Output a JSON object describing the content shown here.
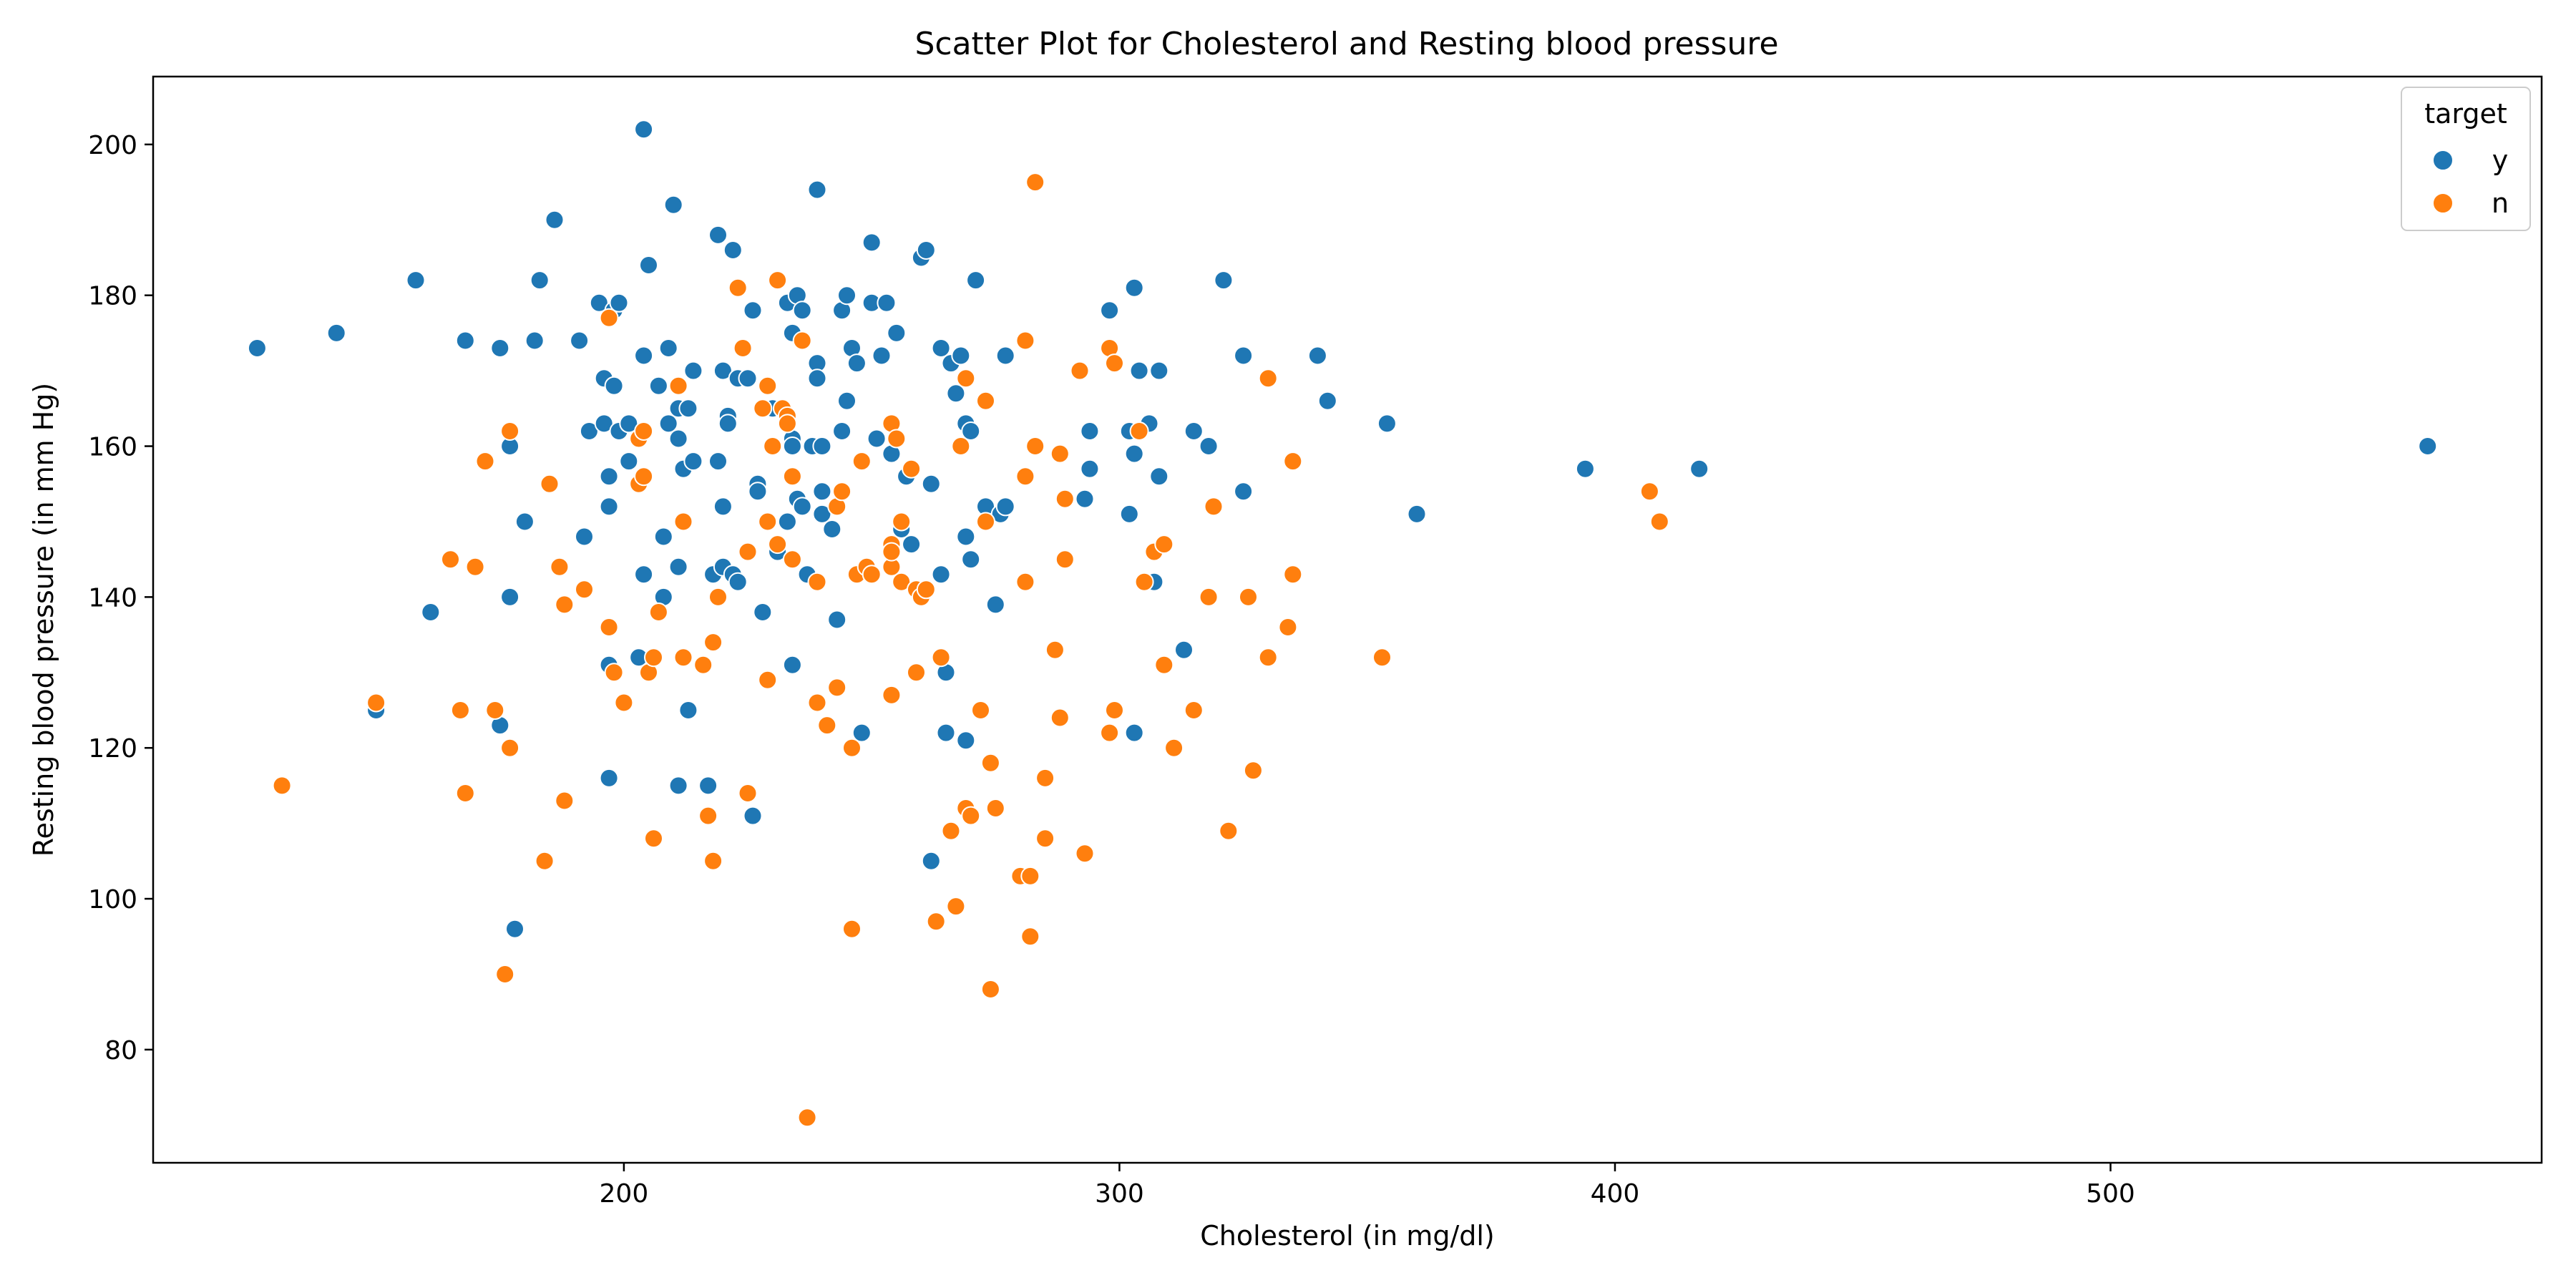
{
  "chart_data": {
    "type": "scatter",
    "title": "Scatter Plot for Cholesterol and Resting blood pressure",
    "xlabel": "Cholesterol (in mg/dl)",
    "ylabel": "Resting blood pressure (in mm Hg)",
    "xlim": [
      105,
      587
    ],
    "ylim": [
      65,
      209
    ],
    "xticks": [
      200,
      300,
      400,
      500
    ],
    "yticks": [
      80,
      100,
      120,
      140,
      160,
      180,
      200
    ],
    "grid": false,
    "legend": {
      "title": "target",
      "position": "top-right",
      "entries": [
        {
          "label": "y",
          "color": "#1f77b4"
        },
        {
          "label": "n",
          "color": "#ff7f0e"
        }
      ]
    },
    "series": [
      {
        "name": "y",
        "color": "#1f77b4",
        "points": [
          [
            126,
            173
          ],
          [
            142,
            175
          ],
          [
            150,
            125
          ],
          [
            158,
            182
          ],
          [
            161,
            138
          ],
          [
            168,
            174
          ],
          [
            175,
            173
          ],
          [
            175,
            123
          ],
          [
            177,
            160
          ],
          [
            177,
            140
          ],
          [
            178,
            96
          ],
          [
            180,
            150
          ],
          [
            182,
            174
          ],
          [
            183,
            182
          ],
          [
            186,
            190
          ],
          [
            191,
            174
          ],
          [
            192,
            148
          ],
          [
            193,
            162
          ],
          [
            195,
            179
          ],
          [
            196,
            163
          ],
          [
            196,
            169
          ],
          [
            197,
            156
          ],
          [
            197,
            152
          ],
          [
            197,
            131
          ],
          [
            197,
            116
          ],
          [
            198,
            168
          ],
          [
            198,
            178
          ],
          [
            199,
            179
          ],
          [
            199,
            162
          ],
          [
            200,
            126
          ],
          [
            201,
            163
          ],
          [
            201,
            158
          ],
          [
            203,
            132
          ],
          [
            204,
            143
          ],
          [
            204,
            172
          ],
          [
            204,
            202
          ],
          [
            205,
            184
          ],
          [
            207,
            168
          ],
          [
            208,
            140
          ],
          [
            208,
            148
          ],
          [
            209,
            163
          ],
          [
            209,
            173
          ],
          [
            210,
            192
          ],
          [
            211,
            165
          ],
          [
            211,
            161
          ],
          [
            211,
            144
          ],
          [
            211,
            115
          ],
          [
            212,
            157
          ],
          [
            213,
            165
          ],
          [
            213,
            125
          ],
          [
            214,
            170
          ],
          [
            214,
            158
          ],
          [
            217,
            115
          ],
          [
            218,
            143
          ],
          [
            219,
            188
          ],
          [
            219,
            158
          ],
          [
            220,
            170
          ],
          [
            220,
            152
          ],
          [
            220,
            144
          ],
          [
            221,
            164
          ],
          [
            221,
            163
          ],
          [
            222,
            143
          ],
          [
            222,
            186
          ],
          [
            223,
            169
          ],
          [
            223,
            142
          ],
          [
            225,
            169
          ],
          [
            226,
            178
          ],
          [
            226,
            111
          ],
          [
            227,
            155
          ],
          [
            227,
            154
          ],
          [
            228,
            138
          ],
          [
            230,
            165
          ],
          [
            231,
            147
          ],
          [
            231,
            146
          ],
          [
            232,
            165
          ],
          [
            233,
            179
          ],
          [
            233,
            150
          ],
          [
            234,
            161
          ],
          [
            234,
            160
          ],
          [
            234,
            175
          ],
          [
            234,
            131
          ],
          [
            235,
            180
          ],
          [
            235,
            153
          ],
          [
            236,
            152
          ],
          [
            236,
            178
          ],
          [
            237,
            143
          ],
          [
            238,
            160
          ],
          [
            239,
            171
          ],
          [
            239,
            169
          ],
          [
            239,
            194
          ],
          [
            240,
            160
          ],
          [
            240,
            151
          ],
          [
            240,
            154
          ],
          [
            242,
            149
          ],
          [
            243,
            137
          ],
          [
            244,
            178
          ],
          [
            244,
            162
          ],
          [
            245,
            180
          ],
          [
            245,
            166
          ],
          [
            246,
            173
          ],
          [
            247,
            171
          ],
          [
            248,
            122
          ],
          [
            250,
            187
          ],
          [
            250,
            179
          ],
          [
            251,
            161
          ],
          [
            252,
            172
          ],
          [
            253,
            179
          ],
          [
            254,
            159
          ],
          [
            255,
            175
          ],
          [
            256,
            149
          ],
          [
            257,
            156
          ],
          [
            258,
            147
          ],
          [
            260,
            185
          ],
          [
            261,
            186
          ],
          [
            262,
            155
          ],
          [
            262,
            105
          ],
          [
            264,
            143
          ],
          [
            264,
            173
          ],
          [
            265,
            130
          ],
          [
            265,
            122
          ],
          [
            266,
            171
          ],
          [
            267,
            167
          ],
          [
            268,
            172
          ],
          [
            269,
            121
          ],
          [
            269,
            148
          ],
          [
            269,
            163
          ],
          [
            270,
            145
          ],
          [
            270,
            162
          ],
          [
            271,
            182
          ],
          [
            273,
            152
          ],
          [
            275,
            139
          ],
          [
            276,
            151
          ],
          [
            277,
            172
          ],
          [
            277,
            152
          ],
          [
            293,
            153
          ],
          [
            294,
            157
          ],
          [
            294,
            162
          ],
          [
            298,
            178
          ],
          [
            302,
            162
          ],
          [
            302,
            151
          ],
          [
            303,
            181
          ],
          [
            303,
            159
          ],
          [
            303,
            122
          ],
          [
            304,
            170
          ],
          [
            306,
            163
          ],
          [
            307,
            142
          ],
          [
            308,
            170
          ],
          [
            308,
            156
          ],
          [
            315,
            162
          ],
          [
            318,
            160
          ],
          [
            321,
            182
          ],
          [
            325,
            172
          ],
          [
            325,
            154
          ],
          [
            340,
            172
          ],
          [
            342,
            166
          ],
          [
            354,
            163
          ],
          [
            360,
            151
          ],
          [
            394,
            157
          ],
          [
            417,
            157
          ],
          [
            564,
            160
          ],
          [
            313,
            133
          ]
        ]
      },
      {
        "name": "n",
        "color": "#ff7f0e",
        "points": [
          [
            131,
            115
          ],
          [
            150,
            126
          ],
          [
            165,
            145
          ],
          [
            167,
            125
          ],
          [
            168,
            114
          ],
          [
            170,
            144
          ],
          [
            172,
            158
          ],
          [
            174,
            125
          ],
          [
            176,
            90
          ],
          [
            177,
            162
          ],
          [
            177,
            120
          ],
          [
            184,
            105
          ],
          [
            185,
            155
          ],
          [
            187,
            144
          ],
          [
            188,
            113
          ],
          [
            188,
            139
          ],
          [
            192,
            141
          ],
          [
            197,
            177
          ],
          [
            197,
            136
          ],
          [
            198,
            130
          ],
          [
            200,
            126
          ],
          [
            203,
            161
          ],
          [
            203,
            155
          ],
          [
            204,
            162
          ],
          [
            204,
            156
          ],
          [
            205,
            130
          ],
          [
            206,
            132
          ],
          [
            206,
            108
          ],
          [
            207,
            138
          ],
          [
            211,
            168
          ],
          [
            212,
            150
          ],
          [
            212,
            132
          ],
          [
            216,
            131
          ],
          [
            217,
            111
          ],
          [
            218,
            134
          ],
          [
            218,
            105
          ],
          [
            219,
            140
          ],
          [
            223,
            181
          ],
          [
            224,
            173
          ],
          [
            225,
            146
          ],
          [
            225,
            114
          ],
          [
            228,
            165
          ],
          [
            229,
            150
          ],
          [
            229,
            168
          ],
          [
            229,
            129
          ],
          [
            230,
            160
          ],
          [
            231,
            147
          ],
          [
            231,
            182
          ],
          [
            232,
            165
          ],
          [
            233,
            164
          ],
          [
            233,
            163
          ],
          [
            234,
            156
          ],
          [
            234,
            145
          ],
          [
            236,
            174
          ],
          [
            239,
            126
          ],
          [
            239,
            142
          ],
          [
            241,
            123
          ],
          [
            243,
            152
          ],
          [
            243,
            128
          ],
          [
            244,
            154
          ],
          [
            246,
            120
          ],
          [
            246,
            96
          ],
          [
            247,
            143
          ],
          [
            248,
            158
          ],
          [
            249,
            144
          ],
          [
            250,
            143
          ],
          [
            254,
            127
          ],
          [
            254,
            144
          ],
          [
            254,
            147
          ],
          [
            254,
            146
          ],
          [
            254,
            163
          ],
          [
            255,
            161
          ],
          [
            256,
            150
          ],
          [
            256,
            142
          ],
          [
            258,
            157
          ],
          [
            259,
            141
          ],
          [
            259,
            130
          ],
          [
            260,
            140
          ],
          [
            261,
            141
          ],
          [
            263,
            97
          ],
          [
            264,
            132
          ],
          [
            266,
            109
          ],
          [
            267,
            99
          ],
          [
            268,
            160
          ],
          [
            269,
            169
          ],
          [
            269,
            112
          ],
          [
            270,
            111
          ],
          [
            272,
            125
          ],
          [
            273,
            150
          ],
          [
            273,
            166
          ],
          [
            274,
            118
          ],
          [
            274,
            88
          ],
          [
            275,
            112
          ],
          [
            280,
            103
          ],
          [
            281,
            156
          ],
          [
            281,
            174
          ],
          [
            281,
            142
          ],
          [
            282,
            95
          ],
          [
            282,
            103
          ],
          [
            283,
            195
          ],
          [
            283,
            160
          ],
          [
            285,
            116
          ],
          [
            285,
            108
          ],
          [
            287,
            133
          ],
          [
            288,
            159
          ],
          [
            288,
            124
          ],
          [
            289,
            145
          ],
          [
            289,
            153
          ],
          [
            292,
            170
          ],
          [
            293,
            106
          ],
          [
            298,
            122
          ],
          [
            298,
            173
          ],
          [
            299,
            125
          ],
          [
            299,
            171
          ],
          [
            304,
            162
          ],
          [
            305,
            142
          ],
          [
            307,
            146
          ],
          [
            309,
            147
          ],
          [
            309,
            131
          ],
          [
            311,
            120
          ],
          [
            315,
            125
          ],
          [
            318,
            140
          ],
          [
            319,
            152
          ],
          [
            322,
            109
          ],
          [
            326,
            140
          ],
          [
            327,
            117
          ],
          [
            330,
            169
          ],
          [
            330,
            132
          ],
          [
            334,
            136
          ],
          [
            335,
            158
          ],
          [
            335,
            143
          ],
          [
            353,
            132
          ],
          [
            407,
            154
          ],
          [
            409,
            150
          ],
          [
            237,
            71
          ]
        ]
      }
    ]
  }
}
